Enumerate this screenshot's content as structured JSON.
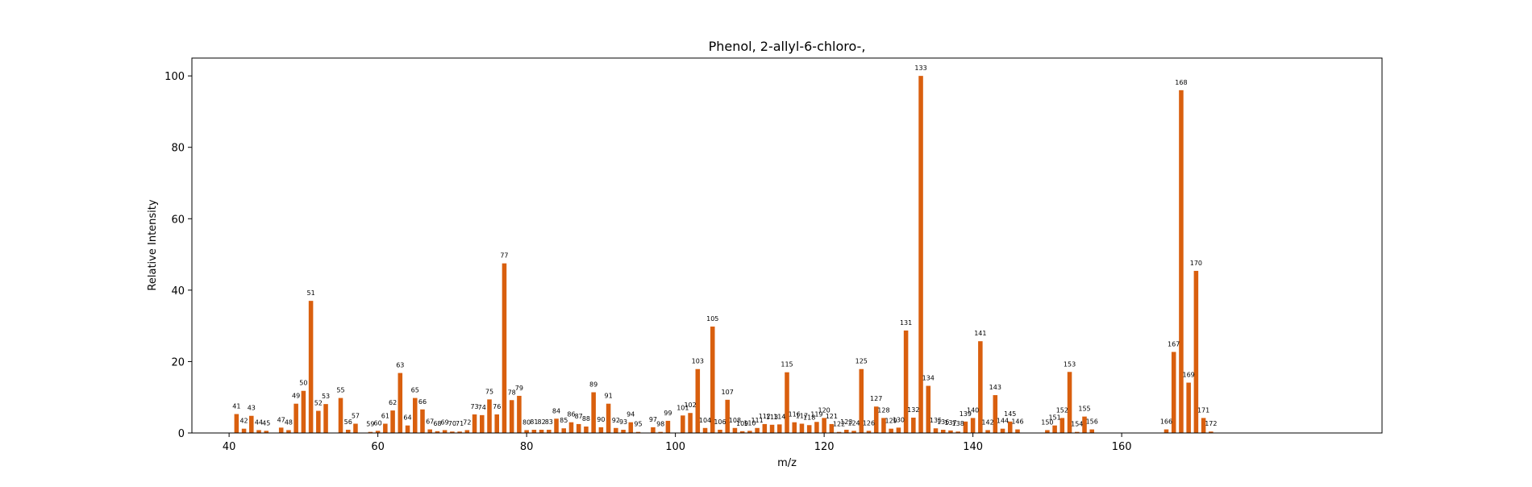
{
  "chart_data": {
    "type": "bar",
    "title": "Phenol, 2-allyl-6-chloro-,",
    "xlabel": "m/z",
    "ylabel": "Relative Intensity",
    "xlim": [
      35,
      195
    ],
    "ylim": [
      0,
      105
    ],
    "xticks": [
      40,
      60,
      80,
      100,
      120,
      140,
      160
    ],
    "yticks": [
      0,
      20,
      40,
      60,
      80,
      100
    ],
    "grid": false,
    "bar_color": "#d95f0e",
    "peaks": [
      {
        "x": 41,
        "y": 5.3
      },
      {
        "x": 42,
        "y": 1.2
      },
      {
        "x": 43,
        "y": 4.8
      },
      {
        "x": 44,
        "y": 0.8
      },
      {
        "x": 45,
        "y": 0.6
      },
      {
        "x": 47,
        "y": 1.5
      },
      {
        "x": 48,
        "y": 0.8
      },
      {
        "x": 49,
        "y": 8.2
      },
      {
        "x": 50,
        "y": 11.8
      },
      {
        "x": 51,
        "y": 37.0
      },
      {
        "x": 52,
        "y": 6.2
      },
      {
        "x": 53,
        "y": 8.1
      },
      {
        "x": 55,
        "y": 9.8
      },
      {
        "x": 56,
        "y": 0.9
      },
      {
        "x": 57,
        "y": 2.6
      },
      {
        "x": 59,
        "y": 0.3
      },
      {
        "x": 60,
        "y": 0.6
      },
      {
        "x": 61,
        "y": 2.6
      },
      {
        "x": 62,
        "y": 6.3
      },
      {
        "x": 63,
        "y": 16.8
      },
      {
        "x": 64,
        "y": 2.1
      },
      {
        "x": 65,
        "y": 9.8
      },
      {
        "x": 66,
        "y": 6.6
      },
      {
        "x": 67,
        "y": 1.0
      },
      {
        "x": 68,
        "y": 0.5
      },
      {
        "x": 69,
        "y": 0.8
      },
      {
        "x": 70,
        "y": 0.4
      },
      {
        "x": 71,
        "y": 0.4
      },
      {
        "x": 72,
        "y": 0.8
      },
      {
        "x": 73,
        "y": 5.2
      },
      {
        "x": 74,
        "y": 5.0
      },
      {
        "x": 75,
        "y": 9.4
      },
      {
        "x": 76,
        "y": 5.2
      },
      {
        "x": 77,
        "y": 47.5
      },
      {
        "x": 78,
        "y": 9.2
      },
      {
        "x": 79,
        "y": 10.4
      },
      {
        "x": 80,
        "y": 0.8
      },
      {
        "x": 81,
        "y": 0.9
      },
      {
        "x": 82,
        "y": 0.9
      },
      {
        "x": 83,
        "y": 0.9
      },
      {
        "x": 84,
        "y": 4.0
      },
      {
        "x": 85,
        "y": 1.3
      },
      {
        "x": 86,
        "y": 3.0
      },
      {
        "x": 87,
        "y": 2.5
      },
      {
        "x": 88,
        "y": 1.8
      },
      {
        "x": 89,
        "y": 11.4
      },
      {
        "x": 90,
        "y": 1.6
      },
      {
        "x": 91,
        "y": 8.2
      },
      {
        "x": 92,
        "y": 1.4
      },
      {
        "x": 93,
        "y": 0.9
      },
      {
        "x": 94,
        "y": 3.0
      },
      {
        "x": 95,
        "y": 0.3
      },
      {
        "x": 97,
        "y": 1.6
      },
      {
        "x": 98,
        "y": 0.3
      },
      {
        "x": 99,
        "y": 3.4
      },
      {
        "x": 101,
        "y": 4.9
      },
      {
        "x": 102,
        "y": 5.6
      },
      {
        "x": 103,
        "y": 17.9
      },
      {
        "x": 104,
        "y": 1.4
      },
      {
        "x": 105,
        "y": 29.8
      },
      {
        "x": 106,
        "y": 0.9
      },
      {
        "x": 107,
        "y": 9.3
      },
      {
        "x": 108,
        "y": 1.4
      },
      {
        "x": 109,
        "y": 0.5
      },
      {
        "x": 110,
        "y": 0.6
      },
      {
        "x": 111,
        "y": 1.4
      },
      {
        "x": 112,
        "y": 2.5
      },
      {
        "x": 113,
        "y": 2.3
      },
      {
        "x": 114,
        "y": 2.4
      },
      {
        "x": 115,
        "y": 17.0
      },
      {
        "x": 116,
        "y": 3.0
      },
      {
        "x": 117,
        "y": 2.6
      },
      {
        "x": 118,
        "y": 2.2
      },
      {
        "x": 119,
        "y": 3.1
      },
      {
        "x": 120,
        "y": 4.2
      },
      {
        "x": 121,
        "y": 2.5
      },
      {
        "x": 122,
        "y": 0.3
      },
      {
        "x": 123,
        "y": 0.9
      },
      {
        "x": 124,
        "y": 0.6
      },
      {
        "x": 125,
        "y": 17.9
      },
      {
        "x": 126,
        "y": 0.6
      },
      {
        "x": 127,
        "y": 7.4
      },
      {
        "x": 128,
        "y": 4.2
      },
      {
        "x": 129,
        "y": 1.2
      },
      {
        "x": 130,
        "y": 1.5
      },
      {
        "x": 131,
        "y": 28.7
      },
      {
        "x": 132,
        "y": 4.3
      },
      {
        "x": 133,
        "y": 100.0
      },
      {
        "x": 134,
        "y": 13.2
      },
      {
        "x": 135,
        "y": 1.3
      },
      {
        "x": 136,
        "y": 0.9
      },
      {
        "x": 137,
        "y": 0.7
      },
      {
        "x": 138,
        "y": 0.4
      },
      {
        "x": 139,
        "y": 3.2
      },
      {
        "x": 140,
        "y": 4.2
      },
      {
        "x": 141,
        "y": 25.7
      },
      {
        "x": 142,
        "y": 0.8
      },
      {
        "x": 143,
        "y": 10.6
      },
      {
        "x": 144,
        "y": 1.2
      },
      {
        "x": 145,
        "y": 3.2
      },
      {
        "x": 146,
        "y": 1.0
      },
      {
        "x": 150,
        "y": 0.8
      },
      {
        "x": 151,
        "y": 2.1
      },
      {
        "x": 152,
        "y": 4.2
      },
      {
        "x": 153,
        "y": 17.1
      },
      {
        "x": 154,
        "y": 0.3
      },
      {
        "x": 155,
        "y": 4.6
      },
      {
        "x": 156,
        "y": 1.0
      },
      {
        "x": 166,
        "y": 1.0
      },
      {
        "x": 167,
        "y": 22.7
      },
      {
        "x": 168,
        "y": 96.0
      },
      {
        "x": 169,
        "y": 14.1
      },
      {
        "x": 170,
        "y": 45.4
      },
      {
        "x": 171,
        "y": 4.2
      },
      {
        "x": 172,
        "y": 0.4
      }
    ]
  }
}
